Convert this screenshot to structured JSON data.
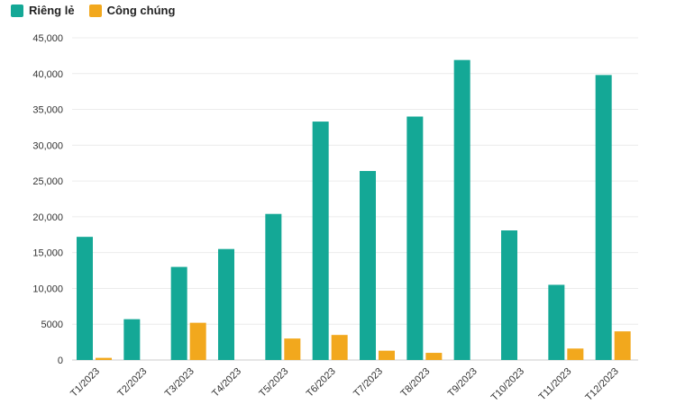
{
  "chart_data": {
    "type": "bar",
    "title": "",
    "xlabel": "",
    "ylabel": "",
    "categories": [
      "T1/2023",
      "T2/2023",
      "T3/2023",
      "T4/2023",
      "T5/2023",
      "T6/2023",
      "T7/2023",
      "T8/2023",
      "T9/2023",
      "T10/2023",
      "T11/2023",
      "T12/2023"
    ],
    "series": [
      {
        "name": "Riêng lẻ",
        "color": "#14a896",
        "values": [
          17200,
          5700,
          13000,
          15500,
          20400,
          33300,
          26400,
          34000,
          41900,
          18100,
          10500,
          39800
        ]
      },
      {
        "name": "Công chúng",
        "color": "#f2a81d",
        "values": [
          300,
          0,
          5200,
          0,
          3000,
          3500,
          1300,
          1000,
          0,
          0,
          1600,
          4000
        ]
      }
    ],
    "ylim": [
      0,
      45000
    ],
    "yticks": [
      0,
      5000,
      10000,
      15000,
      20000,
      25000,
      30000,
      35000,
      40000,
      45000
    ],
    "ytick_labels": [
      "0",
      "5000",
      "10,000",
      "15,000",
      "20,000",
      "25,000",
      "30,000",
      "35,000",
      "40,000",
      "45,000"
    ],
    "grid": true,
    "legend_position": "top-left"
  }
}
